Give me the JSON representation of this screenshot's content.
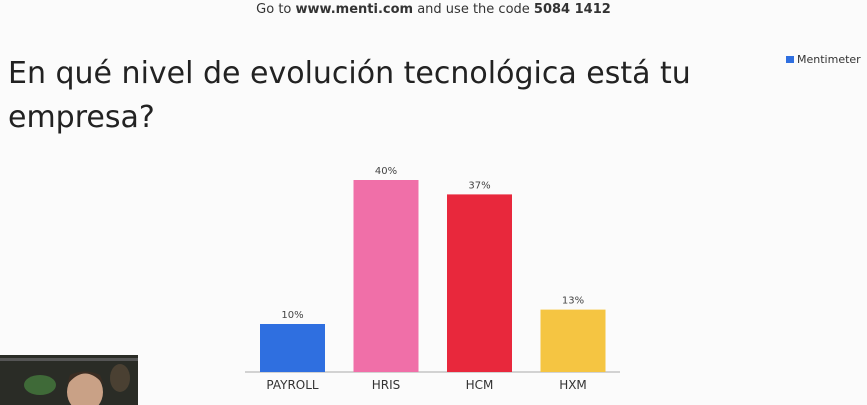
{
  "header": {
    "prefix": "Go to",
    "url": "www.menti.com",
    "middle": "and use the code",
    "code": "5084 1412"
  },
  "logo": "Mentimeter",
  "chart_data": {
    "type": "bar",
    "title": "En qué nivel de evolución tecnológica está tu empresa?",
    "categories": [
      "PAYROLL",
      "HRIS",
      "HCM",
      "HXM"
    ],
    "values": [
      10,
      40,
      37,
      13
    ],
    "value_labels": [
      "10%",
      "40%",
      "37%",
      "13%"
    ],
    "colors": [
      "#2f6fe0",
      "#f06fa8",
      "#e8283c",
      "#f5c542"
    ]
  }
}
